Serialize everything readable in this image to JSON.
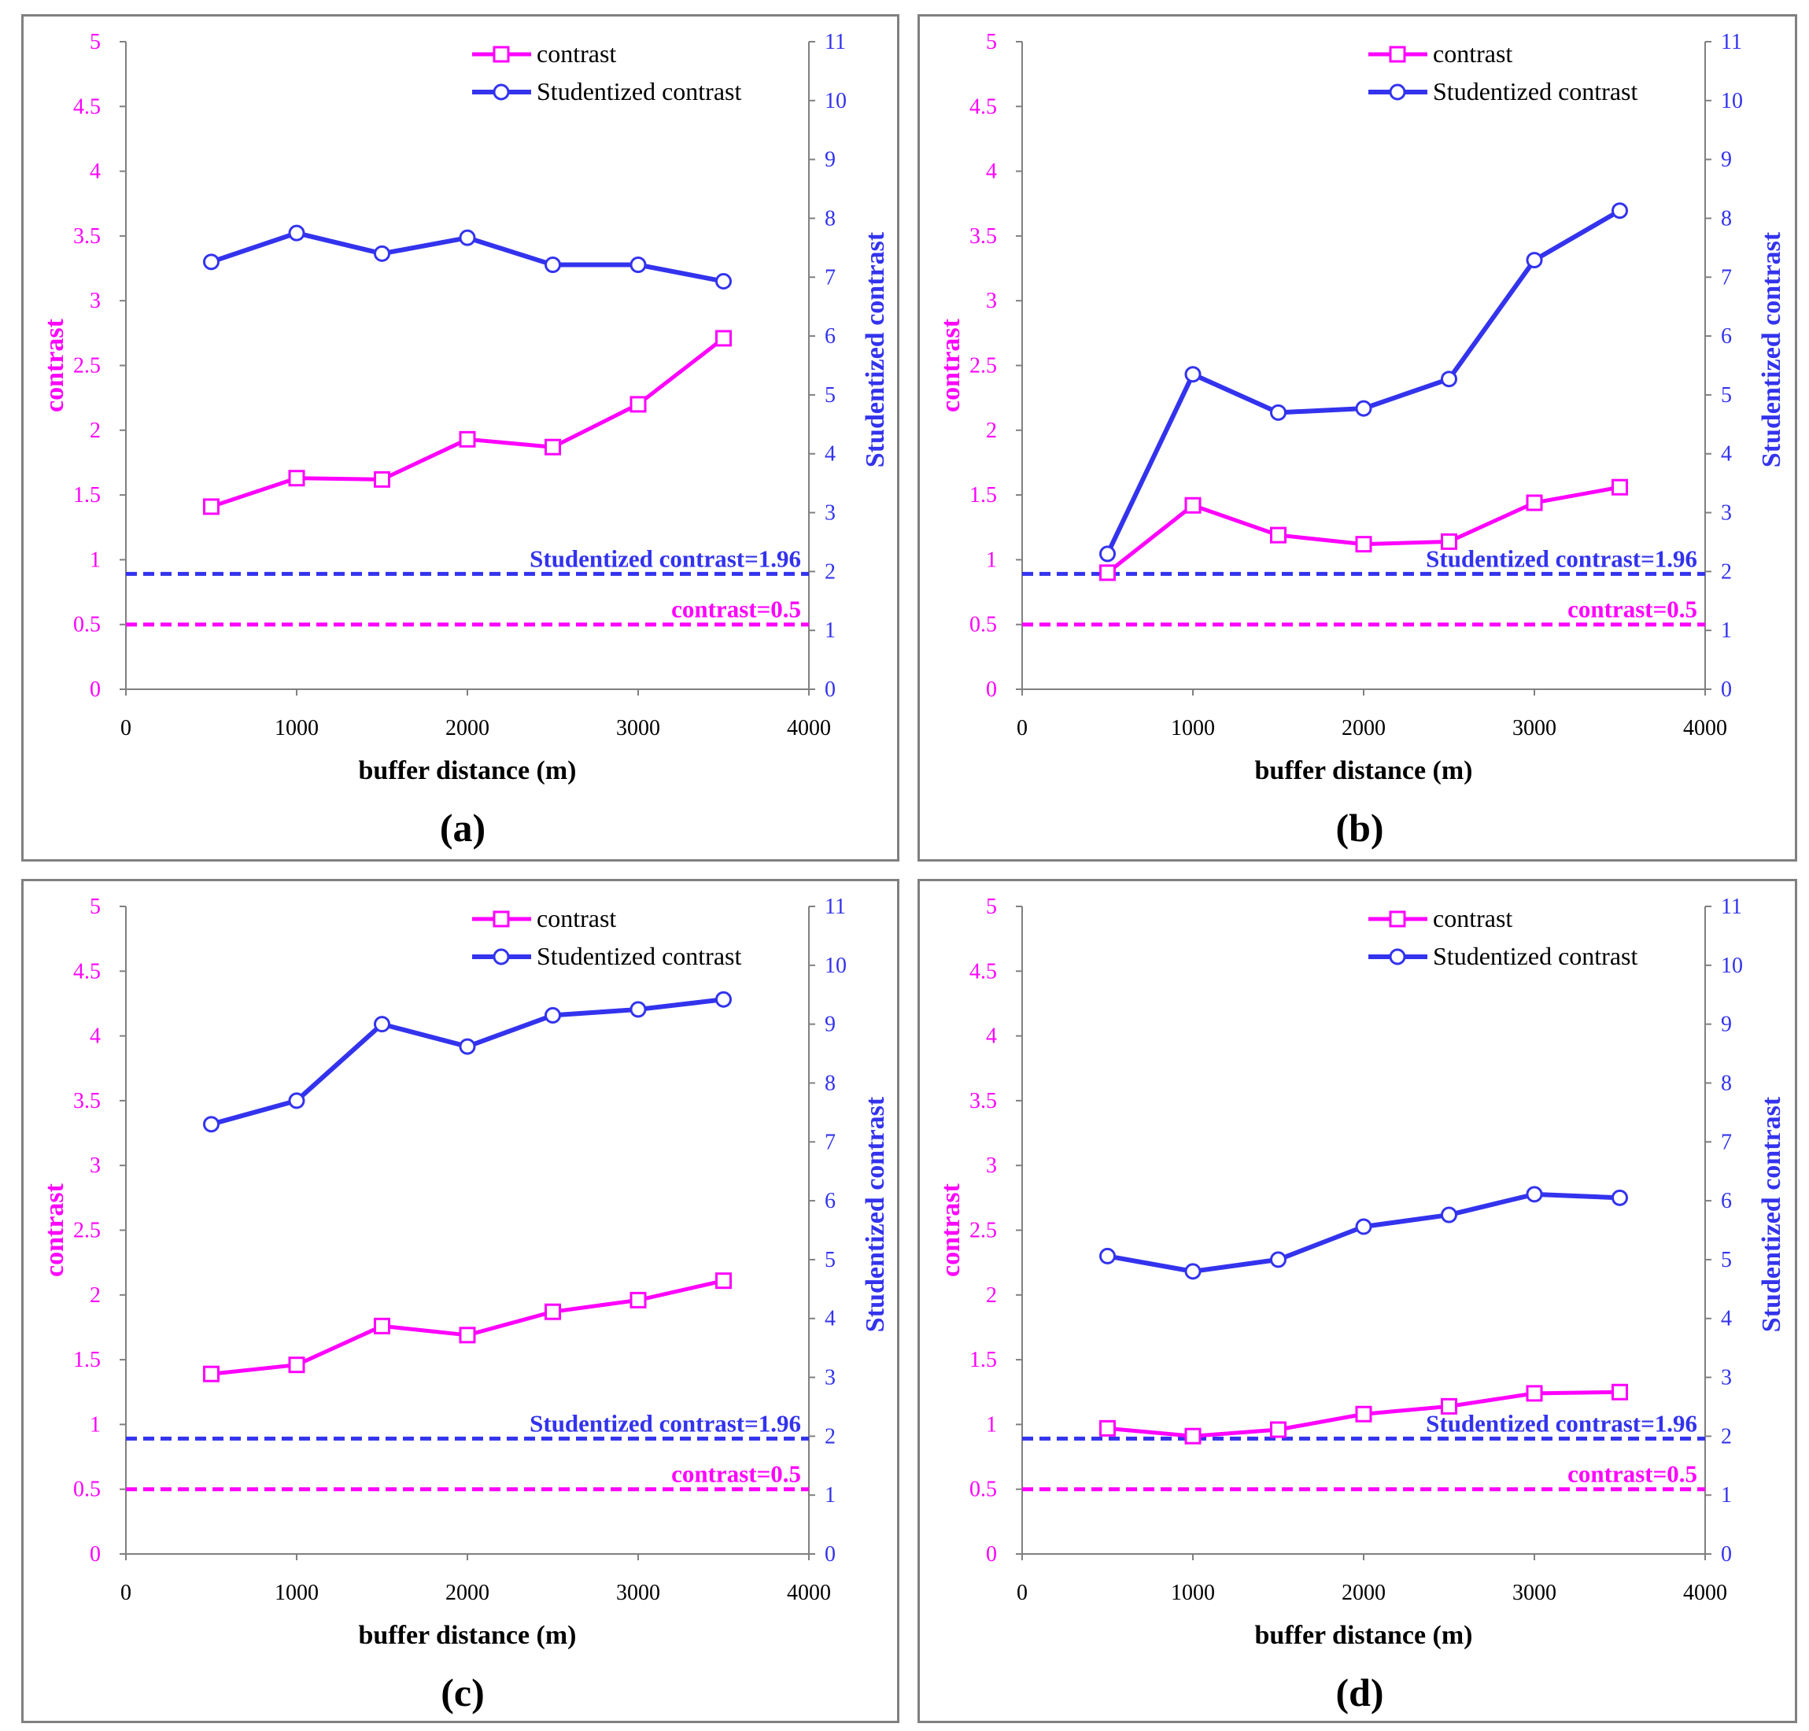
{
  "colors": {
    "contrast": "#FF00FF",
    "studentized": "#3333EE",
    "axis": "#808080",
    "text": "#000000"
  },
  "legend": {
    "contrast": "contrast",
    "studentized": "Studentized contrast"
  },
  "chart_data": [
    {
      "panel_label": "(a)",
      "type": "line",
      "xlabel": "buffer distance (m)",
      "ylabel_left": "contrast",
      "ylabel_right": "Studentized contrast",
      "xlim": [
        0,
        4000
      ],
      "ylim_left": [
        0,
        5
      ],
      "ylim_right": [
        0,
        11
      ],
      "xticks": [
        0,
        1000,
        2000,
        3000,
        4000
      ],
      "yticks_left": [
        0,
        0.5,
        1,
        1.5,
        2,
        2.5,
        3,
        3.5,
        4,
        4.5,
        5
      ],
      "yticks_right": [
        0,
        1,
        2,
        3,
        4,
        5,
        6,
        7,
        8,
        9,
        10,
        11
      ],
      "x": [
        500,
        1000,
        1500,
        2000,
        2500,
        3000,
        3500
      ],
      "series": [
        {
          "name": "contrast",
          "axis": "left",
          "values": [
            1.41,
            1.63,
            1.62,
            1.93,
            1.87,
            2.2,
            2.71
          ]
        },
        {
          "name": "Studentized contrast",
          "axis": "right",
          "values": [
            7.26,
            7.75,
            7.4,
            7.67,
            7.21,
            7.21,
            6.93
          ]
        }
      ],
      "reference_lines": [
        {
          "label": "Studentized contrast=1.96",
          "axis": "right",
          "value": 1.96
        },
        {
          "label": "contrast=0.5",
          "axis": "left",
          "value": 0.5
        }
      ]
    },
    {
      "panel_label": "(b)",
      "type": "line",
      "xlabel": "buffer distance (m)",
      "ylabel_left": "contrast",
      "ylabel_right": "Studentized contrast",
      "xlim": [
        0,
        4000
      ],
      "ylim_left": [
        0,
        5
      ],
      "ylim_right": [
        0,
        11
      ],
      "xticks": [
        0,
        1000,
        2000,
        3000,
        4000
      ],
      "yticks_left": [
        0,
        0.5,
        1,
        1.5,
        2,
        2.5,
        3,
        3.5,
        4,
        4.5,
        5
      ],
      "yticks_right": [
        0,
        1,
        2,
        3,
        4,
        5,
        6,
        7,
        8,
        9,
        10,
        11
      ],
      "x": [
        500,
        1000,
        1500,
        2000,
        2500,
        3000,
        3500
      ],
      "series": [
        {
          "name": "contrast",
          "axis": "left",
          "values": [
            0.9,
            1.42,
            1.19,
            1.12,
            1.14,
            1.44,
            1.56
          ]
        },
        {
          "name": "Studentized contrast",
          "axis": "right",
          "values": [
            2.3,
            5.35,
            4.7,
            4.77,
            5.27,
            7.29,
            8.13
          ]
        }
      ],
      "reference_lines": [
        {
          "label": "Studentized contrast=1.96",
          "axis": "right",
          "value": 1.96
        },
        {
          "label": "contrast=0.5",
          "axis": "left",
          "value": 0.5
        }
      ]
    },
    {
      "panel_label": "(c)",
      "type": "line",
      "xlabel": "buffer distance (m)",
      "ylabel_left": "contrast",
      "ylabel_right": "Studentized contrast",
      "xlim": [
        0,
        4000
      ],
      "ylim_left": [
        0,
        5
      ],
      "ylim_right": [
        0,
        11
      ],
      "xticks": [
        0,
        1000,
        2000,
        3000,
        4000
      ],
      "yticks_left": [
        0,
        0.5,
        1,
        1.5,
        2,
        2.5,
        3,
        3.5,
        4,
        4.5,
        5
      ],
      "yticks_right": [
        0,
        1,
        2,
        3,
        4,
        5,
        6,
        7,
        8,
        9,
        10,
        11
      ],
      "x": [
        500,
        1000,
        1500,
        2000,
        2500,
        3000,
        3500
      ],
      "series": [
        {
          "name": "contrast",
          "axis": "left",
          "values": [
            1.39,
            1.46,
            1.76,
            1.69,
            1.87,
            1.96,
            2.11
          ]
        },
        {
          "name": "Studentized contrast",
          "axis": "right",
          "values": [
            7.3,
            7.7,
            9.0,
            8.62,
            9.15,
            9.25,
            9.42
          ]
        }
      ],
      "reference_lines": [
        {
          "label": "Studentized contrast=1.96",
          "axis": "right",
          "value": 1.96
        },
        {
          "label": "contrast=0.5",
          "axis": "left",
          "value": 0.5
        }
      ]
    },
    {
      "panel_label": "(d)",
      "type": "line",
      "xlabel": "buffer distance (m)",
      "ylabel_left": "contrast",
      "ylabel_right": "Studentized contrast",
      "xlim": [
        0,
        4000
      ],
      "ylim_left": [
        0,
        5
      ],
      "ylim_right": [
        0,
        11
      ],
      "xticks": [
        0,
        1000,
        2000,
        3000,
        4000
      ],
      "yticks_left": [
        0,
        0.5,
        1,
        1.5,
        2,
        2.5,
        3,
        3.5,
        4,
        4.5,
        5
      ],
      "yticks_right": [
        0,
        1,
        2,
        3,
        4,
        5,
        6,
        7,
        8,
        9,
        10,
        11
      ],
      "x": [
        500,
        1000,
        1500,
        2000,
        2500,
        3000,
        3500
      ],
      "series": [
        {
          "name": "contrast",
          "axis": "left",
          "values": [
            0.97,
            0.91,
            0.96,
            1.08,
            1.14,
            1.24,
            1.25
          ]
        },
        {
          "name": "Studentized contrast",
          "axis": "right",
          "values": [
            5.06,
            4.8,
            5.0,
            5.56,
            5.76,
            6.11,
            6.05
          ]
        }
      ],
      "reference_lines": [
        {
          "label": "Studentized contrast=1.96",
          "axis": "right",
          "value": 1.96
        },
        {
          "label": "contrast=0.5",
          "axis": "left",
          "value": 0.5
        }
      ]
    }
  ]
}
